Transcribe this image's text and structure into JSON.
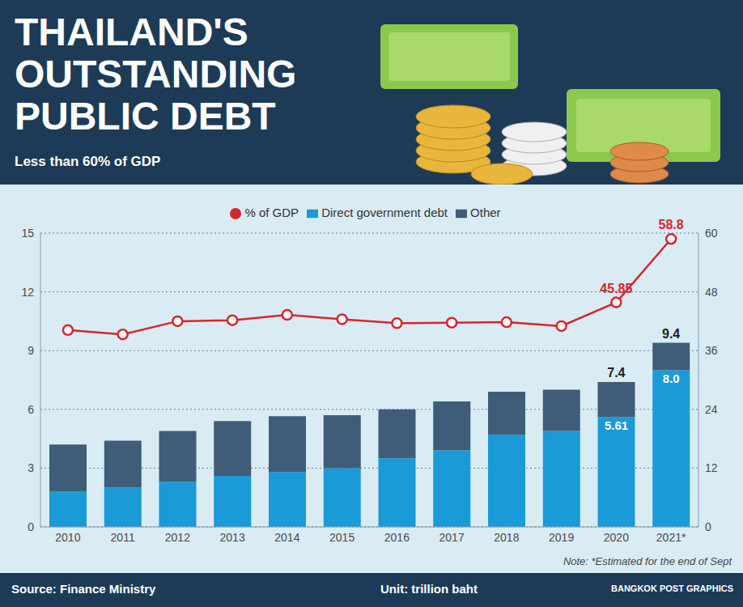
{
  "chart_data": {
    "type": "bar",
    "title": "THAILAND'S OUTSTANDING PUBLIC DEBT",
    "subtitle": "Less than 60% of GDP",
    "note": "Note: *Estimated for the end of Sept",
    "source": "Source: Finance Ministry",
    "unit": "Unit: trillion baht",
    "credit": "BANGKOK POST GRAPHICS",
    "stacked": true,
    "grid": true,
    "legend": "top",
    "categories": [
      "2010",
      "2011",
      "2012",
      "2013",
      "2014",
      "2015",
      "2016",
      "2017",
      "2018",
      "2019",
      "2020",
      "2021*"
    ],
    "ylim": [
      0,
      15
    ],
    "yticks": [
      0,
      3,
      6,
      9,
      12,
      15
    ],
    "y2lim": [
      0,
      60
    ],
    "y2ticks": [
      0,
      12,
      24,
      36,
      48,
      60
    ],
    "series": [
      {
        "name": "% of GDP",
        "type": "line",
        "axis": "y2",
        "color": "#d7262b",
        "marker": "circle",
        "values": [
          40.2,
          39.3,
          42.0,
          42.2,
          43.3,
          42.4,
          41.6,
          41.7,
          41.8,
          41.0,
          45.85,
          58.8
        ],
        "value_labels": [
          null,
          null,
          null,
          null,
          null,
          null,
          null,
          null,
          null,
          null,
          "45.85",
          "58.8"
        ]
      },
      {
        "name": "Direct government debt",
        "type": "bar",
        "color": "#1a9ad6",
        "values": [
          1.8,
          2.0,
          2.3,
          2.6,
          2.8,
          3.0,
          3.5,
          3.9,
          4.7,
          4.9,
          5.61,
          8.0
        ],
        "value_labels": [
          null,
          null,
          null,
          null,
          null,
          null,
          null,
          null,
          null,
          null,
          "5.61",
          "8.0"
        ]
      },
      {
        "name": "Other",
        "type": "bar",
        "color": "#3f5d78",
        "values": [
          2.4,
          2.4,
          2.6,
          2.8,
          2.85,
          2.7,
          2.5,
          2.5,
          2.2,
          2.1,
          1.79,
          1.4
        ]
      }
    ],
    "annotations": [
      {
        "category": "2020",
        "value": 7.4,
        "label": "7.4"
      },
      {
        "category": "2021*",
        "value": 9.4,
        "label": "9.4"
      }
    ]
  }
}
